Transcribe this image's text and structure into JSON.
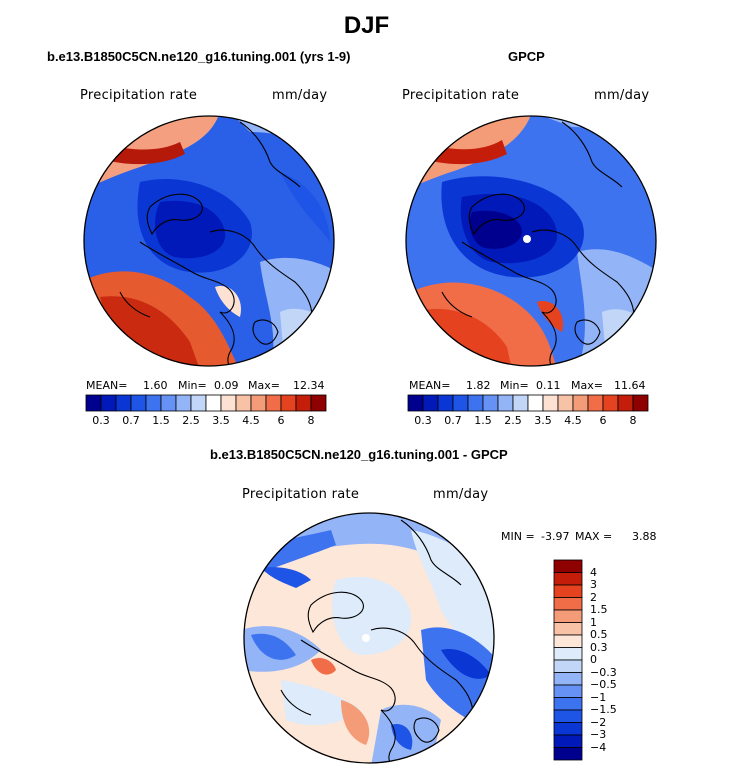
{
  "title": "DJF",
  "panels": [
    {
      "subtitle": "b.e13.B1850C5CN.ne120_g16.tuning.001 (yrs 1-9)",
      "variable": "Precipitation rate",
      "units": "mm/day",
      "stats": {
        "mean_label": "MEAN=",
        "mean": "1.60",
        "min_label": "Min=",
        "min": "0.09",
        "max_label": "Max=",
        "max": "12.34"
      }
    },
    {
      "subtitle": "GPCP",
      "variable": "Precipitation rate",
      "units": "mm/day",
      "stats": {
        "mean_label": "MEAN=",
        "mean": "1.82",
        "min_label": "Min=",
        "min": "0.11",
        "max_label": "Max=",
        "max": "11.64"
      }
    },
    {
      "subtitle": "b.e13.B1850C5CN.ne120_g16.tuning.001 - GPCP",
      "variable": "Precipitation rate",
      "units": "mm/day",
      "stats": {
        "min_label": "MIN =",
        "min": "-3.97",
        "max_label": "MAX =",
        "max": "3.88"
      }
    }
  ],
  "colorbar_abs": {
    "colors": [
      "#00008f",
      "#0019b8",
      "#0a37d4",
      "#1f55e6",
      "#3e73f0",
      "#6692f5",
      "#93b4f7",
      "#c2d6f8",
      "#ffffff",
      "#fde1d2",
      "#f8c2a6",
      "#f49c78",
      "#f06d48",
      "#e5431f",
      "#c41e0b",
      "#8f0000"
    ],
    "tick_labels": [
      "0.3",
      "0.7",
      "1.5",
      "2.5",
      "3.5",
      "4.5",
      "6",
      "8"
    ]
  },
  "colorbar_diff": {
    "colors": [
      "#00008f",
      "#0019b8",
      "#0a37d4",
      "#1f55e6",
      "#3e73f0",
      "#6692f5",
      "#93b4f7",
      "#c2d6f8",
      "#ddebfb",
      "#fde7d8",
      "#f8c2a6",
      "#f49c78",
      "#f06d48",
      "#e5431f",
      "#c41e0b",
      "#8f0000"
    ],
    "tick_labels": [
      "4",
      "3",
      "2",
      "1.5",
      "1",
      "0.5",
      "0.3",
      "0",
      "−0.3",
      "−0.5",
      "−1",
      "−1.5",
      "−2",
      "−3",
      "−4"
    ]
  }
}
